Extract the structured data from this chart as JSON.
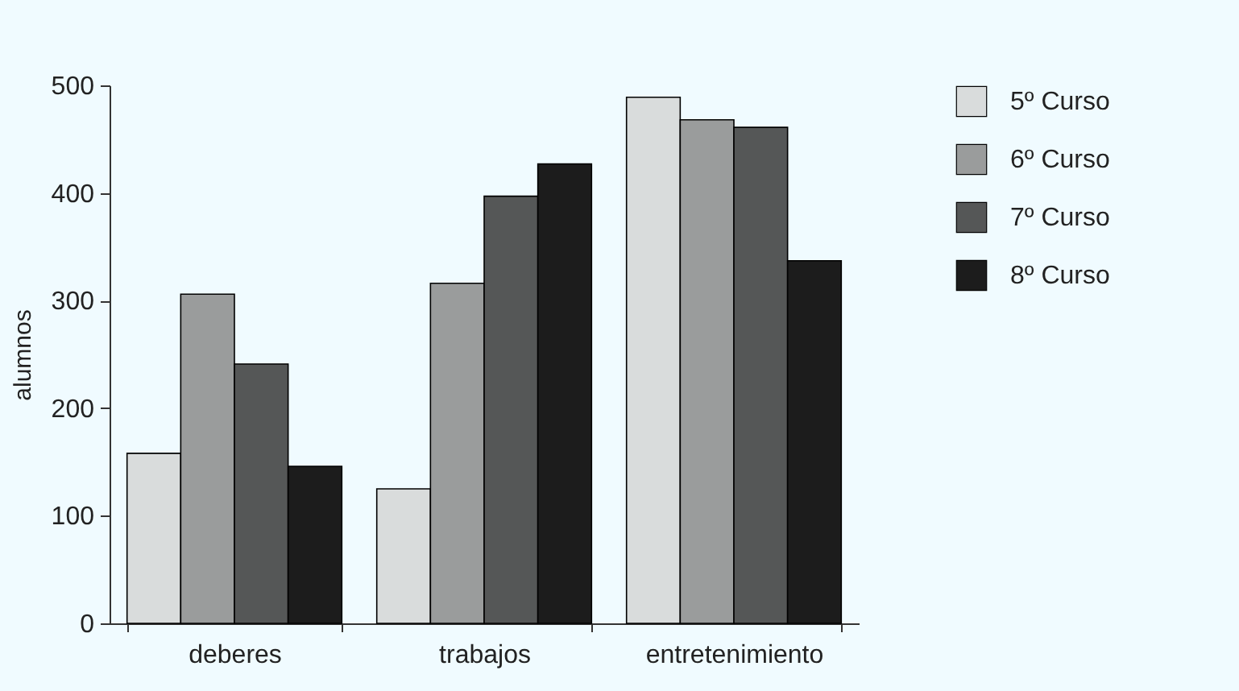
{
  "chart_data": {
    "type": "bar",
    "ylabel": "alumnos",
    "categories": [
      "deberes",
      "trabajos",
      "entretenimiento"
    ],
    "series": [
      {
        "name": "5º Curso",
        "color": "#d9dcdc",
        "values": [
          158,
          125,
          489
        ]
      },
      {
        "name": "6º Curso",
        "color": "#9a9c9c",
        "values": [
          306,
          316,
          468
        ]
      },
      {
        "name": "7º Curso",
        "color": "#555757",
        "values": [
          241,
          397,
          461
        ]
      },
      {
        "name": "8º Curso",
        "color": "#1c1c1c",
        "values": [
          146,
          427,
          337
        ]
      }
    ],
    "ylim": [
      0,
      500
    ],
    "yticks": [
      0,
      100,
      200,
      300,
      400,
      500
    ],
    "grid": false,
    "legend": "top right"
  }
}
